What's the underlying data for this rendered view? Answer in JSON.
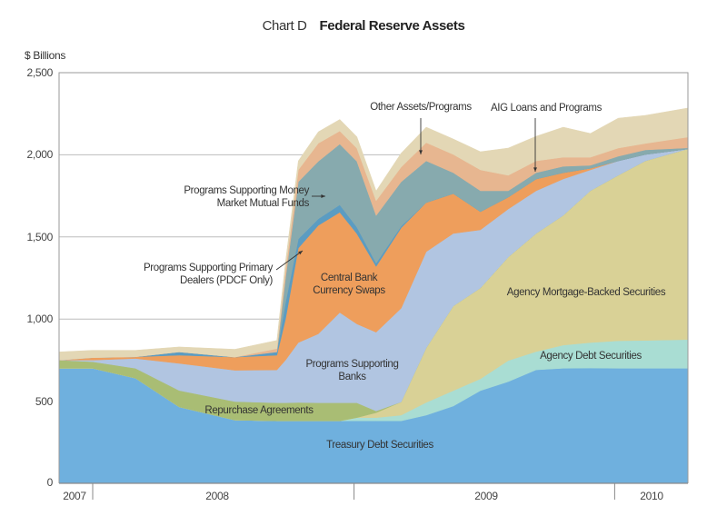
{
  "chart_data": {
    "type": "area",
    "stacked": true,
    "title_prefix": "Chart D",
    "title": "Federal Reserve Assets",
    "ylabel": "$ Billions",
    "xlabel": "",
    "ylim": [
      0,
      2500
    ],
    "yticks": [
      "0",
      "500",
      "1,000",
      "1,500",
      "2,000",
      "2,500"
    ],
    "ytick_values": [
      0,
      500,
      1000,
      1500,
      2000,
      2500
    ],
    "xlim": [
      "2007-11-15",
      "2010-04-13"
    ],
    "year_labels": [
      "2007",
      "2008",
      "2009",
      "2010"
    ],
    "grid": true,
    "legend": "inline labels",
    "x": [
      "2007-11-15",
      "2008-01-01",
      "2008-03-01",
      "2008-05-01",
      "2008-07-18",
      "2008-09-15",
      "2008-09-27",
      "2008-10-15",
      "2008-11-12",
      "2008-12-12",
      "2009-01-05",
      "2009-02-01",
      "2009-03-08",
      "2009-04-12",
      "2009-05-20",
      "2009-06-27",
      "2009-08-05",
      "2009-09-13",
      "2009-10-21",
      "2009-11-28",
      "2010-01-06",
      "2010-02-13",
      "2010-04-13"
    ],
    "series": [
      {
        "name": "Treasury Debt Securities",
        "color": "#6fb0de",
        "values": [
          700,
          700,
          640,
          465,
          385,
          380,
          380,
          380,
          380,
          380,
          380,
          380,
          380,
          415,
          470,
          564,
          619,
          691,
          700,
          702,
          700,
          700,
          700
        ]
      },
      {
        "name": "Agency Debt Securities",
        "color": "#a9ddd3",
        "values": [
          0,
          0,
          0,
          0,
          0,
          0,
          0,
          0,
          0,
          0,
          20,
          20,
          35,
          77,
          94,
          72,
          128,
          111,
          141,
          155,
          168,
          170,
          175
        ]
      },
      {
        "name": "Agency Mortgage-Backed Securities",
        "color": "#d9d196",
        "values": [
          0,
          0,
          0,
          0,
          0,
          0,
          0,
          0,
          0,
          0,
          0,
          30,
          80,
          332,
          515,
          553,
          630,
          719,
          790,
          924,
          1007,
          1093,
          1161
        ]
      },
      {
        "name": "Repurchase Agreements",
        "color": "#a9bd74",
        "values": [
          50,
          40,
          60,
          100,
          113,
          110,
          110,
          112,
          110,
          110,
          90,
          10,
          0,
          0,
          0,
          0,
          0,
          0,
          0,
          0,
          0,
          0,
          0
        ]
      },
      {
        "name": "Programs Supporting Banks",
        "color": "#b1c5e1",
        "values": [
          0,
          10,
          60,
          165,
          190,
          200,
          260,
          365,
          420,
          550,
          480,
          480,
          570,
          586,
          442,
          354,
          293,
          260,
          222,
          127,
          88,
          39,
          0
        ]
      },
      {
        "name": "Central Bank Currency Swaps",
        "color": "#ee9e5c",
        "values": [
          0,
          15,
          10,
          50,
          80,
          90,
          250,
          575,
          660,
          610,
          550,
          400,
          490,
          299,
          243,
          111,
          72,
          72,
          38,
          10,
          0,
          0,
          0
        ]
      },
      {
        "name": "Programs Supporting Primary Dealers (PDCF Only)",
        "color": "#5b9cc2",
        "values": [
          0,
          0,
          0,
          20,
          0,
          20,
          100,
          56,
          40,
          45,
          40,
          20,
          10,
          0,
          0,
          0,
          0,
          0,
          0,
          0,
          0,
          0,
          0
        ]
      },
      {
        "name": "Programs Supporting Money Market Mutual Funds",
        "color": "#87aaae",
        "values": [
          0,
          0,
          0,
          0,
          0,
          0,
          150,
          348,
          350,
          370,
          400,
          290,
          270,
          254,
          127,
          127,
          39,
          38,
          39,
          18,
          28,
          28,
          6
        ]
      },
      {
        "name": "AIG Loans and Programs",
        "color": "#e7b690",
        "values": [
          0,
          0,
          0,
          0,
          0,
          20,
          50,
          72,
          110,
          80,
          80,
          90,
          90,
          111,
          111,
          127,
          94,
          72,
          55,
          49,
          50,
          39,
          66
        ]
      },
      {
        "name": "Other Assets/Programs",
        "color": "#e3d7b5",
        "values": [
          50,
          45,
          40,
          30,
          48,
          50,
          50,
          55,
          70,
          70,
          70,
          60,
          85,
          94,
          94,
          111,
          166,
          150,
          183,
          145,
          182,
          171,
          177
        ]
      }
    ]
  }
}
